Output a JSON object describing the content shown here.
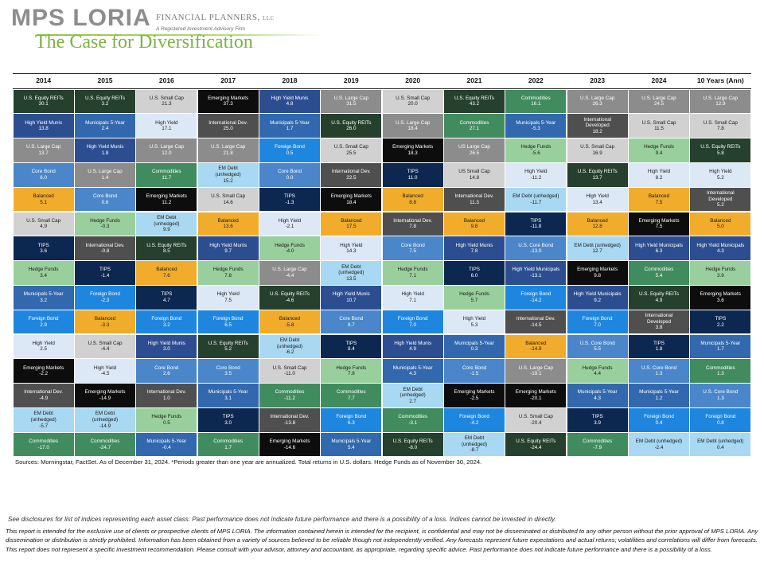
{
  "brand": {
    "logo_text": "MPS LORIA",
    "suffix": "FINANCIAL PLANNERS",
    "suffix_llc": "LLC",
    "tagline": "A Registered Investment Advisory Firm"
  },
  "page_title": "The Case for Diversification",
  "colors": {
    "U.S. Equity REITs": "#25402d",
    "Municipals 5-Year": "#3268ad",
    "U.S. Small Cap": "#d1d1d1",
    "Emerging Markets": "#0d0d0d",
    "High Yield Munis": "#2c4e91",
    "U.S. Large Cap": "#8c8c8c",
    "Commodities": "#418c5e",
    "High Yield": "#dce8f6",
    "International Dev.": "#4f4f4f",
    "Foreign Bond": "#1f86e0",
    "Hedge Funds": "#99cf9c",
    "EM Debt": "#a8d8f2",
    "Core Bond": "#4a86c9",
    "Balanced": "#f2ac2b",
    "TIPS": "#0d2850"
  },
  "chart_data": {
    "type": "table",
    "title": "The Case for Diversification",
    "columns": [
      "2014",
      "2015",
      "2016",
      "2017",
      "2018",
      "2019",
      "2020",
      "2021",
      "2022",
      "2023",
      "2024",
      "10 Years (Ann)"
    ],
    "rows_per_column": 15,
    "data": [
      [
        [
          "U.S. Equity REITs",
          "30.1"
        ],
        [
          "High Yield Munis",
          "13.8"
        ],
        [
          "U.S. Large Cap",
          "13.7"
        ],
        [
          "Core Bond",
          "6.0"
        ],
        [
          "Balanced",
          "5.1"
        ],
        [
          "U.S. Small Cap",
          "4.9"
        ],
        [
          "TIPS",
          "3.6"
        ],
        [
          "Hedge Funds",
          "3.4"
        ],
        [
          "Municipals 5-Year",
          "3.2"
        ],
        [
          "Foreign Bond",
          "2.9"
        ],
        [
          "High Yield",
          "2.5"
        ],
        [
          "Emerging Markets",
          "-2.2"
        ],
        [
          "International Dev.",
          "-4.9"
        ],
        [
          "EM Debt\n(unhedged)",
          "-5.7"
        ],
        [
          "Commodities",
          "-17.0"
        ]
      ],
      [
        [
          "U.S. Equity REITs",
          "3.2"
        ],
        [
          "Municipals 5-Year",
          "2.4"
        ],
        [
          "High Yield Munis",
          "1.8"
        ],
        [
          "U.S. Large Cap",
          "1.4"
        ],
        [
          "Core Bond",
          "0.6"
        ],
        [
          "Hedge Funds",
          "-0.3"
        ],
        [
          "International Dev.",
          "-0.8"
        ],
        [
          "TIPS",
          "-1.4"
        ],
        [
          "Foreign Bond",
          "-2.3"
        ],
        [
          "Balanced",
          "-3.3"
        ],
        [
          "U.S. Small Cap",
          "-4.4"
        ],
        [
          "High Yield",
          "-4.5"
        ],
        [
          "Emerging Markets",
          "-14.9"
        ],
        [
          "EM Debt\n(unhedged)",
          "-14.9"
        ],
        [
          "Commodities",
          "-24.7"
        ]
      ],
      [
        [
          "U.S. Small Cap",
          "21.3"
        ],
        [
          "High Yield",
          "17.1"
        ],
        [
          "U.S. Large Cap",
          "12.0"
        ],
        [
          "Commodities",
          "11.7"
        ],
        [
          "Emerging Markets",
          "11.2"
        ],
        [
          "EM Debt\n(unhedged)",
          "9.9"
        ],
        [
          "U.S. Equity REITs",
          "8.5"
        ],
        [
          "Balanced",
          "7.6"
        ],
        [
          "TIPS",
          "4.7"
        ],
        [
          "Foreign Bond",
          "3.2"
        ],
        [
          "High Yield Munis",
          "3.0"
        ],
        [
          "Core Bond",
          "2.6"
        ],
        [
          "International Dev.",
          "1.0"
        ],
        [
          "Hedge Funds",
          "0.5"
        ],
        [
          "Municipals 5-Year",
          "-0.4"
        ]
      ],
      [
        [
          "Emerging Markets",
          "37.3"
        ],
        [
          "International Dev.",
          "25.0"
        ],
        [
          "U.S. Large Cap",
          "21.8"
        ],
        [
          "EM Debt\n(unhedged)",
          "15.2"
        ],
        [
          "U.S. Small Cap",
          "14.6"
        ],
        [
          "Balanced",
          "13.6"
        ],
        [
          "High Yield Munis",
          "9.7"
        ],
        [
          "Hedge Funds",
          "7.8"
        ],
        [
          "High Yield",
          "7.5"
        ],
        [
          "Foreign Bond",
          "6.5"
        ],
        [
          "U.S. Equity REITs",
          "5.2"
        ],
        [
          "Core Bond",
          "3.5"
        ],
        [
          "Municipals 5-Year",
          "3.1"
        ],
        [
          "TIPS",
          "3.0"
        ],
        [
          "Commodities",
          "1.7"
        ]
      ],
      [
        [
          "High Yield Munis",
          "4.8"
        ],
        [
          "Municipals 5-Year",
          "1.7"
        ],
        [
          "Foreign Bond",
          "0.5"
        ],
        [
          "Core Bond",
          "0.0"
        ],
        [
          "TIPS",
          "-1.3"
        ],
        [
          "High Yield",
          "-2.1"
        ],
        [
          "Hedge Funds",
          "-4.0"
        ],
        [
          "U.S. Large Cap",
          "-4.4"
        ],
        [
          "U.S. Equity REITs",
          "-4.6"
        ],
        [
          "Balanced",
          "-5.8"
        ],
        [
          "EM Debt\n(unhedged)",
          "-6.2"
        ],
        [
          "U.S. Small Cap",
          "-11.0"
        ],
        [
          "Commodities",
          "-11.2"
        ],
        [
          "International Dev.",
          "-13.8"
        ],
        [
          "Emerging Markets",
          "-14.6"
        ]
      ],
      [
        [
          "U.S. Large Cap",
          "31.5"
        ],
        [
          "U.S. Equity REITs",
          "26.0"
        ],
        [
          "U.S. Small Cap",
          "25.5"
        ],
        [
          "International Dev.",
          "22.5"
        ],
        [
          "Emerging Markets",
          "18.4"
        ],
        [
          "Balanced",
          "17.5"
        ],
        [
          "High Yield",
          "14.3"
        ],
        [
          "EM Debt\n(unhedged)",
          "13.5"
        ],
        [
          "High Yield Munis",
          "10.7"
        ],
        [
          "Core Bond",
          "8.7"
        ],
        [
          "TIPS",
          "8.4"
        ],
        [
          "Hedge Funds",
          "7.8"
        ],
        [
          "Commodities",
          "7.7"
        ],
        [
          "Foreign Bond",
          "6.3"
        ],
        [
          "Municipals 5-Year",
          "5.4"
        ]
      ],
      [
        [
          "U.S. Small Cap",
          "20.0"
        ],
        [
          "U.S. Large Cap",
          "18.4"
        ],
        [
          "Emerging Markets",
          "18.3"
        ],
        [
          "TIPS",
          "11.0"
        ],
        [
          "Balanced",
          "8.8"
        ],
        [
          "International Dev.",
          "7.8"
        ],
        [
          "Core Bond",
          "7.5"
        ],
        [
          "Hedge Funds",
          "7.1"
        ],
        [
          "High Yield",
          "7.1"
        ],
        [
          "Foreign Bond",
          "7.0"
        ],
        [
          "High Yield Munis",
          "4.9"
        ],
        [
          "Municipals 5-Year",
          "4.3"
        ],
        [
          "EM Debt\n(unhedged)",
          "2.7"
        ],
        [
          "Commodities",
          "-3.1"
        ],
        [
          "U.S. Equity REITs",
          "-8.0"
        ]
      ],
      [
        [
          "U.S. Equity REITs",
          "43.2"
        ],
        [
          "Commodities",
          "27.1"
        ],
        [
          "US Large Cap",
          "26.5"
        ],
        [
          "US Small Cap",
          "14.8"
        ],
        [
          "International Dev.",
          "11.3"
        ],
        [
          "Balanced",
          "9.8"
        ],
        [
          "High Yield Munis",
          "7.8"
        ],
        [
          "TIPS",
          "6.0"
        ],
        [
          "Hedge Funds",
          "5.7"
        ],
        [
          "High Yield",
          "5.3"
        ],
        [
          "Municipals 5-Year",
          "0.3"
        ],
        [
          "Core Bond",
          "-1.5"
        ],
        [
          "Emerging Markets",
          "-2.5"
        ],
        [
          "Foreign Bond",
          "-4.2"
        ],
        [
          "EM Debt\n(unhedged)",
          "-8.7"
        ]
      ],
      [
        [
          "Commodities",
          "16.1"
        ],
        [
          "Municipals 5-Year",
          "-5.3"
        ],
        [
          "Hedge Funds",
          "-5.6"
        ],
        [
          "High Yield",
          "-11.2"
        ],
        [
          "EM Debt (unhedged)",
          "-11.7"
        ],
        [
          "TIPS",
          "-11.8"
        ],
        [
          "U.S. Core Bond",
          "-13.0"
        ],
        [
          "High Yield Municipals",
          "-13.1"
        ],
        [
          "Foreign Bond",
          "-14.2"
        ],
        [
          "International Dev.",
          "-14.5"
        ],
        [
          "Balanced",
          "-14.9"
        ],
        [
          "U.S. Large Cap",
          "-19.1"
        ],
        [
          "Emerging Markets",
          "-20.1"
        ],
        [
          "U.S. Small Cap",
          "-20.4"
        ],
        [
          "U.S. Equity REITs",
          "-24.4"
        ]
      ],
      [
        [
          "U.S. Large Cap",
          "26.3"
        ],
        [
          "International\nDeveloped",
          "18.2"
        ],
        [
          "U.S. Small Cap",
          "16.9"
        ],
        [
          "U.S. Equity REITs",
          "13.7"
        ],
        [
          "High Yield",
          "13.4"
        ],
        [
          "Balanced",
          "12.8"
        ],
        [
          "EM Debt (unhedged)",
          "12.7"
        ],
        [
          "Emerging Markets",
          "9.8"
        ],
        [
          "High Yield Municipals",
          "9.2"
        ],
        [
          "Foreign Bond",
          "7.0"
        ],
        [
          "U.S. Core Bond",
          "5.5"
        ],
        [
          "Hedge Funds",
          "4.4"
        ],
        [
          "Municipals 5-Year",
          "4.3"
        ],
        [
          "TIPS",
          "3.9"
        ],
        [
          "Commodities",
          "-7.9"
        ]
      ],
      [
        [
          "U.S. Large Cap",
          "24.5"
        ],
        [
          "U.S. Small Cap",
          "11.5"
        ],
        [
          "Hedge Funds",
          "9.4"
        ],
        [
          "High Yield",
          "8.2"
        ],
        [
          "Balanced",
          "7.5"
        ],
        [
          "Emerging Markets",
          "7.5"
        ],
        [
          "High Yield Municipals",
          "6.3"
        ],
        [
          "Commodities",
          "5.4"
        ],
        [
          "U.S. Equity REITs",
          "4.9"
        ],
        [
          "International\nDeveloped",
          "3.8"
        ],
        [
          "TIPS",
          "1.8"
        ],
        [
          "U.S. Core Bond",
          "1.3"
        ],
        [
          "Municipals 5-Year",
          "1.2"
        ],
        [
          "Foreign Bond",
          "0.4"
        ],
        [
          "EM Debt (unhedged)",
          "-2.4"
        ]
      ],
      [
        [
          "U.S. Large Cap",
          "12.9"
        ],
        [
          "U.S. Small Cap",
          "7.8"
        ],
        [
          "U.S. Equity REITs",
          "5.8"
        ],
        [
          "High Yield",
          "5.2"
        ],
        [
          "International\nDeveloped",
          "5.2"
        ],
        [
          "Balanced",
          "5.0"
        ],
        [
          "High Yield Municipals",
          "4.3"
        ],
        [
          "Hedge Funds",
          "3.9"
        ],
        [
          "Emerging Markets",
          "3.6"
        ],
        [
          "TIPS",
          "2.2"
        ],
        [
          "Municipals 5-Year",
          "1.7"
        ],
        [
          "Commodities",
          "1.3"
        ],
        [
          "U.S. Core Bond",
          "1.3"
        ],
        [
          "Foreign Bond",
          "0.8"
        ],
        [
          "EM Debt (unhedged)",
          "0.4"
        ]
      ]
    ]
  },
  "sources_text": "Sources: Morningstar, FactSet. As of December 31, 2024. *Periods greater than one year are annualized. Total returns in U.S. dollars. Hedge Funds as of November 30, 2024.",
  "disclosure_line": "See disclosures for list of indices representing each asset class. Past performance does not indicate future performance and there is a possibility of a loss. Indices cannot be invested in directly.",
  "legal_text": "This report is intended for the exclusive use of clients or prospective clients of MPS LORIA. The information contained herein is intended for the recipient, is confidential and may not be disseminated or distributed to any other person without the prior approval of MPS LORIA. Any dissemination or distribution is strictly prohibited. Information has been obtained from a variety of sources believed to be reliable though not independently verified. Any forecasts represent future expectations and actual returns; volatilities and correlations will differ from forecasts. This report does not represent a specific investment recommendation. Please consult with your advisor, attorney and accountant, as appropriate, regarding specific advice. Past performance does not indicate future performance and there is a possibility of a loss."
}
